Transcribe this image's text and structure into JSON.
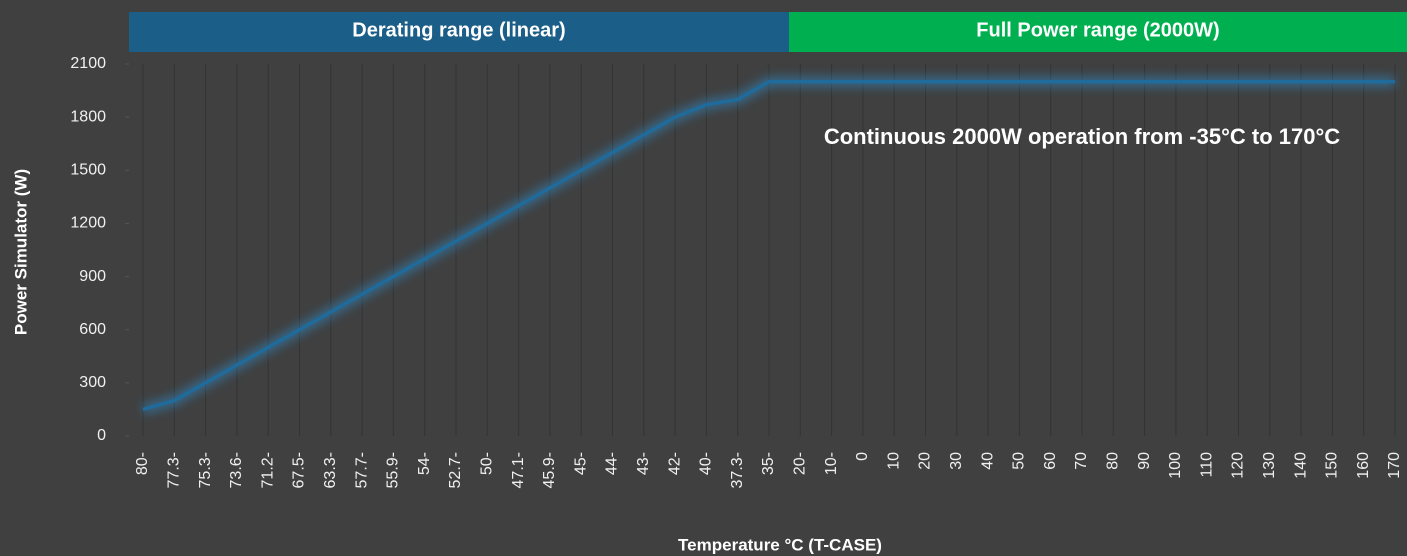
{
  "chart_data": {
    "type": "line",
    "x_label": "Temperature °C (T-CASE)",
    "y_label": "Power Simulator (W)",
    "annotation": "Continuous 2000W operation from -35°C  to 170°C",
    "bands": [
      {
        "label": "Derating range (linear)",
        "color": "#1b5e87"
      },
      {
        "label": "Full Power range (2000W)",
        "color": "#00b050"
      }
    ],
    "categories": [
      "80-",
      "77.3-",
      "75.3-",
      "73.6-",
      "71.2-",
      "67.5-",
      "63.3-",
      "57.7-",
      "55.9-",
      "54-",
      "52.7-",
      "50-",
      "47.1-",
      "45.9-",
      "45-",
      "44-",
      "43-",
      "42-",
      "40-",
      "37.3-",
      "35-",
      "20-",
      "10-",
      "0",
      "10",
      "20",
      "30",
      "40",
      "50",
      "60",
      "70",
      "80",
      "90",
      "100",
      "110",
      "120",
      "130",
      "140",
      "150",
      "160",
      "170"
    ],
    "series": [
      {
        "name": "Power Simulator (W)",
        "color": "#1f6b9c",
        "values": [
          150,
          200,
          300,
          400,
          500,
          600,
          700,
          800,
          900,
          1000,
          1100,
          1200,
          1300,
          1400,
          1500,
          1600,
          1700,
          1800,
          1870,
          1900,
          2000,
          2000,
          2000,
          2000,
          2000,
          2000,
          2000,
          2000,
          2000,
          2000,
          2000,
          2000,
          2000,
          2000,
          2000,
          2000,
          2000,
          2000,
          2000,
          2000,
          2000
        ]
      }
    ],
    "ylim": [
      0,
      2100
    ],
    "yticks": [
      0,
      300,
      600,
      900,
      1200,
      1500,
      1800,
      2100
    ],
    "grid": true
  }
}
